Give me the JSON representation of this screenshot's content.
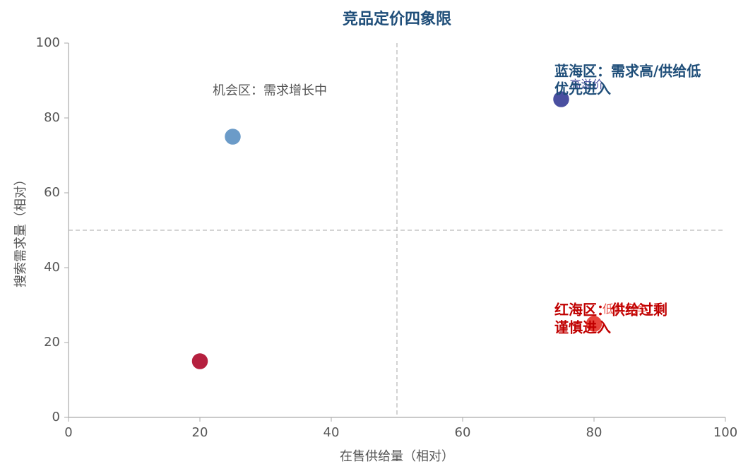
{
  "chart_data": {
    "type": "scatter",
    "title": "竞品定价四象限",
    "xlabel": "在售供给量（相对）",
    "ylabel": "搜索需求量（相对）",
    "x": [
      25,
      75,
      80,
      20
    ],
    "values": [
      75,
      85,
      25,
      15
    ],
    "colors": [
      "#6b9bc8",
      "#4a4fa0",
      "#e8453c",
      "#b5203f"
    ],
    "point_labels": [
      null,
      "高溢价",
      "低价竞争",
      null
    ],
    "xlim": [
      0,
      100
    ],
    "ylim": [
      0,
      100
    ],
    "xticks": [
      0,
      20,
      40,
      60,
      80,
      100
    ],
    "yticks": [
      0,
      20,
      40,
      60,
      80,
      100
    ],
    "x_ref": 50,
    "y_ref": 50,
    "annotations": [
      {
        "lines": [
          "机会区：需求增长中"
        ],
        "color": "#555555"
      },
      {
        "lines": [
          "蓝海区：需求高/供给低",
          "优先进入"
        ],
        "color": "#1f4e79"
      },
      {
        "lines": [
          "红海区：供给过剩",
          "谨慎进入"
        ],
        "color": "#c00000"
      }
    ]
  }
}
